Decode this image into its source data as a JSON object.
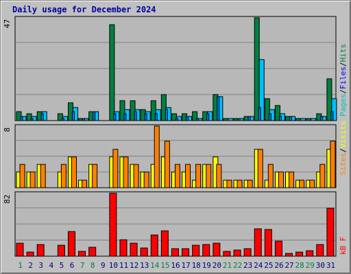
{
  "title": "Daily usage for December 2024",
  "colors": {
    "background": "#c0c0c0",
    "plot_area": "#b8b8b8",
    "gridline": "#808080",
    "title_text": "#0000a0",
    "hits": "#008040",
    "files": "#0080ff",
    "pages": "#00c0ff",
    "visits": "#ffff00",
    "sites": "#ff8000",
    "kbytes": "#ff0000",
    "weekend_label": "#008040",
    "weekday_label": "#000080"
  },
  "legends": {
    "top": [
      {
        "text": "Pages",
        "color": "#00c0c0"
      },
      {
        "text": "Files",
        "color": "#0000ff"
      },
      {
        "text": "Hits",
        "color": "#008040"
      }
    ],
    "middle": [
      {
        "text": "Sites",
        "color": "#ff8000"
      },
      {
        "text": "Visits",
        "color": "#ffff00"
      }
    ],
    "bottom": [
      {
        "text": "kB F",
        "color": "#ff0000"
      }
    ]
  },
  "chart_data": [
    {
      "type": "bar",
      "panel": "hits-files-pages",
      "ymax_label": "47",
      "ylim": [
        0,
        47
      ],
      "categories": [
        "1",
        "2",
        "3",
        "4",
        "5",
        "6",
        "7",
        "8",
        "9",
        "10",
        "11",
        "12",
        "13",
        "14",
        "15",
        "16",
        "17",
        "18",
        "19",
        "20",
        "21",
        "22",
        "23",
        "24",
        "25",
        "26",
        "27",
        "28",
        "29",
        "30",
        "31"
      ],
      "weekend_days": [
        "1",
        "7",
        "8",
        "14",
        "15",
        "21",
        "22",
        "28",
        "29"
      ],
      "series": [
        {
          "name": "Hits",
          "values": [
            4,
            3,
            4,
            0,
            3,
            8,
            1,
            4,
            0,
            44,
            9,
            9,
            5,
            9,
            12,
            3,
            3,
            4,
            4,
            12,
            1,
            1,
            2,
            47,
            10,
            7,
            2,
            1,
            1,
            3,
            19
          ]
        },
        {
          "name": "Files",
          "values": [
            2,
            1,
            3,
            0,
            1,
            4,
            1,
            4,
            0,
            3,
            3,
            4,
            3,
            3,
            5,
            1,
            2,
            1,
            3,
            11,
            0,
            1,
            2,
            6,
            3,
            2,
            2,
            0,
            0,
            2,
            4
          ]
        },
        {
          "name": "Pages",
          "values": [
            2,
            2,
            4,
            0,
            2,
            6,
            1,
            4,
            0,
            4,
            5,
            5,
            4,
            5,
            6,
            2,
            2,
            1,
            4,
            11,
            1,
            1,
            2,
            28,
            5,
            3,
            2,
            1,
            1,
            2,
            10
          ]
        }
      ]
    },
    {
      "type": "bar",
      "panel": "visits-sites",
      "ymax_label": "8",
      "ylim": [
        0,
        8
      ],
      "categories": [
        "1",
        "2",
        "3",
        "4",
        "5",
        "6",
        "7",
        "8",
        "9",
        "10",
        "11",
        "12",
        "13",
        "14",
        "15",
        "16",
        "17",
        "18",
        "19",
        "20",
        "21",
        "22",
        "23",
        "24",
        "25",
        "26",
        "27",
        "28",
        "29",
        "30",
        "31"
      ],
      "series": [
        {
          "name": "Visits",
          "values": [
            2,
            2,
            3,
            0,
            2,
            4,
            1,
            3,
            0,
            4,
            4,
            3,
            2,
            3,
            4,
            2,
            2,
            1,
            3,
            4,
            1,
            1,
            1,
            5,
            1,
            2,
            2,
            1,
            1,
            2,
            5
          ]
        },
        {
          "name": "Sites",
          "values": [
            3,
            2,
            3,
            0,
            3,
            4,
            1,
            3,
            0,
            5,
            4,
            3,
            2,
            8,
            6,
            3,
            3,
            3,
            3,
            3,
            1,
            1,
            1,
            5,
            3,
            2,
            2,
            1,
            1,
            3,
            6
          ]
        }
      ]
    },
    {
      "type": "bar",
      "panel": "kbytes",
      "ymax_label": "82",
      "ylim": [
        0,
        82
      ],
      "categories": [
        "1",
        "2",
        "3",
        "4",
        "5",
        "6",
        "7",
        "8",
        "9",
        "10",
        "11",
        "12",
        "13",
        "14",
        "15",
        "16",
        "17",
        "18",
        "19",
        "20",
        "21",
        "22",
        "23",
        "24",
        "25",
        "26",
        "27",
        "28",
        "29",
        "30",
        "31"
      ],
      "series": [
        {
          "name": "kB F",
          "values": [
            17,
            5,
            15,
            0,
            14,
            32,
            6,
            12,
            0,
            82,
            21,
            17,
            11,
            28,
            33,
            10,
            10,
            14,
            15,
            17,
            6,
            8,
            10,
            36,
            35,
            20,
            4,
            5,
            7,
            15,
            62
          ]
        }
      ]
    }
  ]
}
